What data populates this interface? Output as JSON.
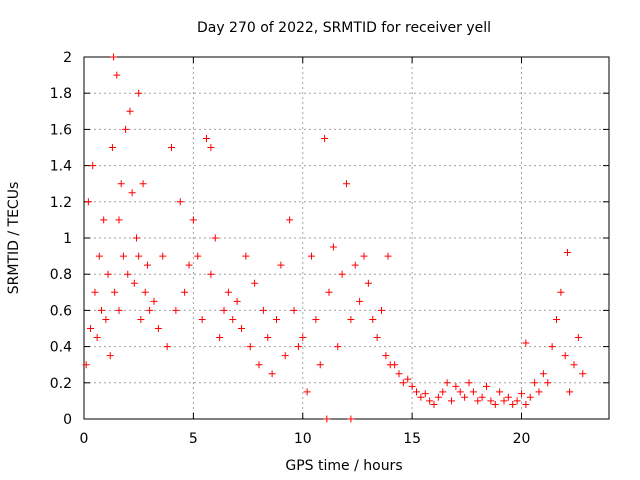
{
  "chart_data": {
    "type": "scatter",
    "title": "Day 270 of 2022, SRMTID for receiver yell",
    "xlabel": "GPS time / hours",
    "ylabel": "SRMTID / TECUs",
    "xlim": [
      0,
      24
    ],
    "ylim": [
      0,
      2
    ],
    "xticks": [
      0,
      5,
      10,
      15,
      20
    ],
    "yticks": [
      0,
      0.2,
      0.4,
      0.6,
      0.8,
      1,
      1.2,
      1.4,
      1.6,
      1.8,
      2
    ],
    "grid": true,
    "marker": "plus",
    "color": "#ff0000",
    "series": [
      {
        "name": "yell",
        "x": [
          0.1,
          0.2,
          0.3,
          0.4,
          0.5,
          0.6,
          0.7,
          0.8,
          0.9,
          1.0,
          1.1,
          1.2,
          1.3,
          1.4,
          1.5,
          1.6,
          1.7,
          1.8,
          1.9,
          2.0,
          2.1,
          2.2,
          2.3,
          2.4,
          2.5,
          2.6,
          2.7,
          2.8,
          2.9,
          3.0,
          3.2,
          3.4,
          3.6,
          3.8,
          4.0,
          4.2,
          4.4,
          4.6,
          4.8,
          5.0,
          5.2,
          5.4,
          5.6,
          5.8,
          6.0,
          6.2,
          6.4,
          6.6,
          6.8,
          7.0,
          7.2,
          7.4,
          7.6,
          7.8,
          8.0,
          8.2,
          8.4,
          8.6,
          8.8,
          9.0,
          9.2,
          9.4,
          9.6,
          9.8,
          10.0,
          10.2,
          10.4,
          10.6,
          10.8,
          11.0,
          11.2,
          11.4,
          11.6,
          11.8,
          12.0,
          12.2,
          12.4,
          12.6,
          12.8,
          13.0,
          13.2,
          13.4,
          13.6,
          13.8,
          14.0,
          14.2,
          14.4,
          14.6,
          14.8,
          15.0,
          15.2,
          15.4,
          15.6,
          15.8,
          16.0,
          16.2,
          16.4,
          16.6,
          16.8,
          17.0,
          17.2,
          17.4,
          17.6,
          17.8,
          18.0,
          18.2,
          18.4,
          18.6,
          18.8,
          19.0,
          19.2,
          19.4,
          19.6,
          19.8,
          20.0,
          20.2,
          20.4,
          20.6,
          20.8,
          21.0,
          21.2,
          21.4,
          21.6,
          21.8,
          22.0,
          22.2,
          22.4,
          22.6,
          22.8,
          1.35,
          1.6,
          2.5,
          5.8,
          11.1,
          12.2,
          13.9,
          20.2,
          22.1
        ],
        "y": [
          0.3,
          1.2,
          0.5,
          1.4,
          0.7,
          0.45,
          0.9,
          0.6,
          1.1,
          0.55,
          0.8,
          0.35,
          1.5,
          0.7,
          1.9,
          0.6,
          1.3,
          0.9,
          1.6,
          0.8,
          1.7,
          1.25,
          0.75,
          1.0,
          0.9,
          0.55,
          1.3,
          0.7,
          0.85,
          0.6,
          0.65,
          0.5,
          0.9,
          0.4,
          1.5,
          0.6,
          1.2,
          0.7,
          0.85,
          1.1,
          0.9,
          0.55,
          1.55,
          0.8,
          1.0,
          0.45,
          0.6,
          0.7,
          0.55,
          0.65,
          0.5,
          0.9,
          0.4,
          0.75,
          0.3,
          0.6,
          0.45,
          0.25,
          0.55,
          0.85,
          0.35,
          1.1,
          0.6,
          0.4,
          0.45,
          0.15,
          0.9,
          0.55,
          0.3,
          1.55,
          0.7,
          0.95,
          0.4,
          0.8,
          1.3,
          0.55,
          0.85,
          0.65,
          0.9,
          0.75,
          0.55,
          0.45,
          0.6,
          0.35,
          0.3,
          0.3,
          0.25,
          0.2,
          0.22,
          0.18,
          0.15,
          0.12,
          0.14,
          0.1,
          0.08,
          0.12,
          0.15,
          0.2,
          0.1,
          0.18,
          0.15,
          0.12,
          0.2,
          0.15,
          0.1,
          0.12,
          0.18,
          0.1,
          0.08,
          0.15,
          0.1,
          0.12,
          0.08,
          0.1,
          0.14,
          0.08,
          0.12,
          0.2,
          0.15,
          0.25,
          0.2,
          0.4,
          0.55,
          0.7,
          0.35,
          0.15,
          0.3,
          0.45,
          0.25,
          2.0,
          1.1,
          1.8,
          1.5,
          0.0,
          0.0,
          0.9,
          0.42,
          0.92
        ]
      }
    ]
  }
}
